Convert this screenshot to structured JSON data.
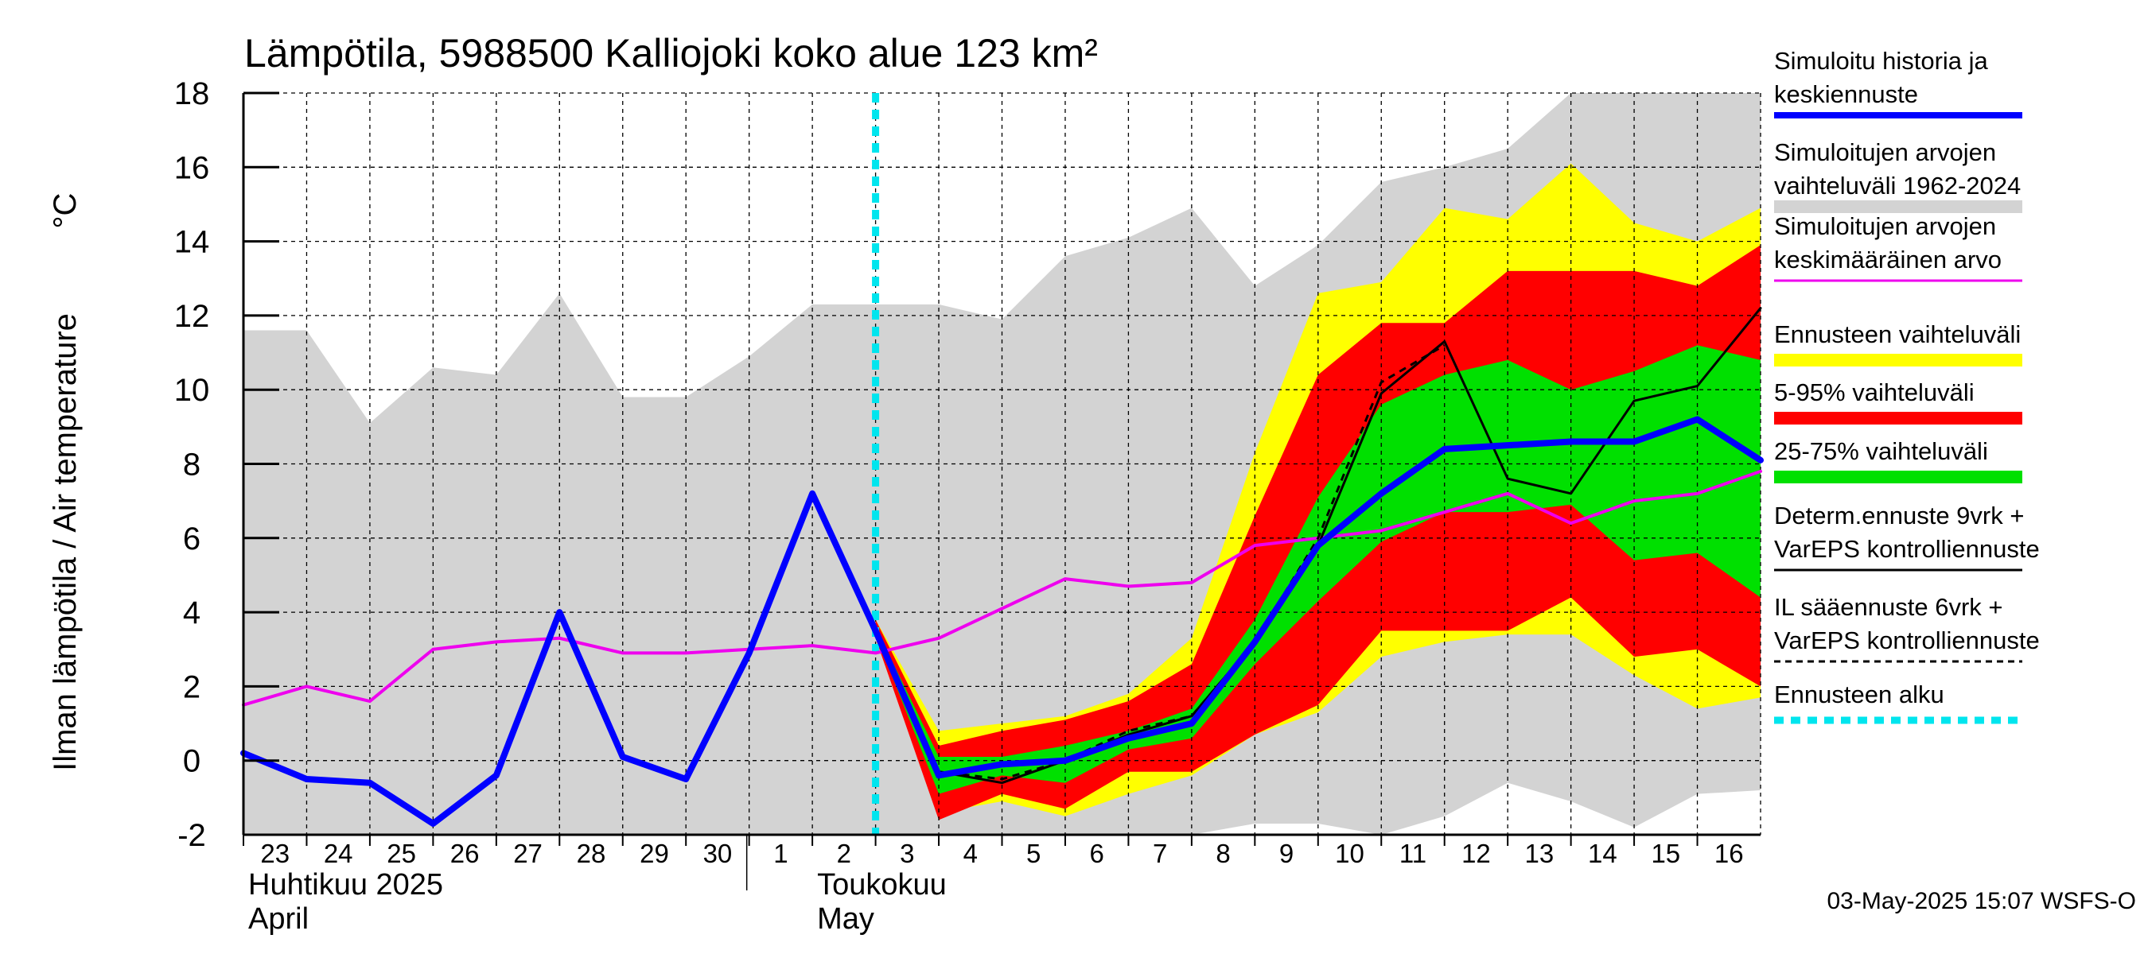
{
  "chart_data": {
    "type": "area",
    "title": "Lämpötila, 5988500 Kalliojoki koko alue 123 km²",
    "ylabel_fi": "Ilman lämpötila / Air temperature",
    "ylabel_unit": "°C",
    "ylim": [
      -2,
      18
    ],
    "yticks": [
      -2,
      0,
      2,
      4,
      6,
      8,
      10,
      12,
      14,
      16,
      18
    ],
    "x_range": [
      0,
      24
    ],
    "grid": true,
    "days": [
      {
        "x": 0,
        "label": "23"
      },
      {
        "x": 1,
        "label": "24"
      },
      {
        "x": 2,
        "label": "25"
      },
      {
        "x": 3,
        "label": "26"
      },
      {
        "x": 4,
        "label": "27"
      },
      {
        "x": 5,
        "label": "28"
      },
      {
        "x": 6,
        "label": "29"
      },
      {
        "x": 7,
        "label": "30"
      },
      {
        "x": 8,
        "label": "1"
      },
      {
        "x": 9,
        "label": "2"
      },
      {
        "x": 10,
        "label": "3"
      },
      {
        "x": 11,
        "label": "4"
      },
      {
        "x": 12,
        "label": "5"
      },
      {
        "x": 13,
        "label": "6"
      },
      {
        "x": 14,
        "label": "7"
      },
      {
        "x": 15,
        "label": "8"
      },
      {
        "x": 16,
        "label": "9"
      },
      {
        "x": 17,
        "label": "10"
      },
      {
        "x": 18,
        "label": "11"
      },
      {
        "x": 19,
        "label": "12"
      },
      {
        "x": 20,
        "label": "13"
      },
      {
        "x": 21,
        "label": "14"
      },
      {
        "x": 22,
        "label": "15"
      },
      {
        "x": 23,
        "label": "16"
      }
    ],
    "month_divider_x": 8,
    "months": [
      {
        "x": 0,
        "label_fi": "Huhtikuu  2025",
        "label_en": "April"
      },
      {
        "x": 9,
        "label_fi": "Toukokuu",
        "label_en": "May"
      }
    ],
    "forecast_start_x": 10,
    "series": [
      {
        "name": "Simuloitujen arvojen vaihteluväli 1962-2024",
        "kind": "band",
        "color": "#d3d3d3",
        "x": [
          0,
          1,
          2,
          3,
          4,
          5,
          6,
          7,
          8,
          9,
          10,
          11,
          12,
          13,
          14,
          15,
          16,
          17,
          18,
          19,
          20,
          21,
          22,
          23,
          24
        ],
        "upper": [
          11.6,
          11.6,
          9.1,
          10.6,
          10.4,
          12.6,
          9.8,
          9.8,
          10.9,
          12.3,
          12.3,
          12.3,
          11.9,
          13.6,
          14.1,
          14.9,
          12.8,
          13.9,
          15.6,
          16.0,
          16.5,
          18.0,
          18.0,
          18.0,
          18.0
        ],
        "lower": [
          -2,
          -2,
          -2,
          -2,
          -2,
          -2,
          -2,
          -2,
          -2,
          -2,
          -2,
          -2,
          -2,
          -2,
          -2,
          -2,
          -1.7,
          -1.7,
          -2.0,
          -1.5,
          -0.6,
          -1.1,
          -1.8,
          -0.9,
          -0.8
        ]
      },
      {
        "name": "Ennusteen vaihteluväli",
        "kind": "band",
        "color": "#ffff00",
        "x": [
          10,
          11,
          12,
          13,
          14,
          15,
          16,
          17,
          18,
          19,
          20,
          21,
          22,
          23,
          24
        ],
        "upper": [
          3.8,
          0.8,
          1.0,
          1.2,
          1.8,
          3.3,
          8.3,
          12.6,
          12.9,
          14.9,
          14.6,
          16.1,
          14.5,
          14.0,
          14.9
        ],
        "lower": [
          3.4,
          -1.4,
          -1.1,
          -1.5,
          -0.9,
          -0.4,
          0.7,
          1.3,
          2.8,
          3.2,
          3.4,
          3.4,
          2.3,
          1.4,
          1.7
        ]
      },
      {
        "name": "5-95% vaihteluväli",
        "kind": "band",
        "color": "#ff0000",
        "x": [
          10,
          11,
          12,
          13,
          14,
          15,
          16,
          17,
          18,
          19,
          20,
          21,
          22,
          23,
          24
        ],
        "upper": [
          3.8,
          0.4,
          0.8,
          1.1,
          1.6,
          2.6,
          6.6,
          10.4,
          11.8,
          11.8,
          13.2,
          13.2,
          13.2,
          12.8,
          13.9
        ],
        "lower": [
          3.3,
          -1.6,
          -0.9,
          -1.3,
          -0.3,
          -0.3,
          0.7,
          1.5,
          3.5,
          3.5,
          3.5,
          4.4,
          2.8,
          3.0,
          2.0
        ]
      },
      {
        "name": "25-75% vaihteluväli",
        "kind": "band",
        "color": "#00e000",
        "x": [
          10,
          11,
          12,
          13,
          14,
          15,
          16,
          17,
          18,
          19,
          20,
          21,
          22,
          23,
          24
        ],
        "upper": [
          3.6,
          0.1,
          0.1,
          0.4,
          0.8,
          1.4,
          3.8,
          7.1,
          9.6,
          10.4,
          10.8,
          10.0,
          10.5,
          11.2,
          10.8
        ],
        "lower": [
          3.4,
          -0.9,
          -0.4,
          -0.6,
          0.3,
          0.6,
          2.6,
          4.3,
          5.9,
          6.7,
          6.7,
          6.9,
          5.4,
          5.6,
          4.4
        ]
      },
      {
        "name": "Simuloitujen arvojen keskimääräinen arvo",
        "kind": "line",
        "color": "#ee00ee",
        "width": 4,
        "dash": "",
        "x": [
          0,
          1,
          2,
          3,
          4,
          5,
          6,
          7,
          8,
          9,
          10,
          11,
          12,
          13,
          14,
          15,
          16,
          17,
          18,
          19,
          20,
          21,
          22,
          23,
          24
        ],
        "y": [
          1.5,
          2.0,
          1.6,
          3.0,
          3.2,
          3.3,
          2.9,
          2.9,
          3.0,
          3.1,
          2.9,
          3.3,
          4.1,
          4.9,
          4.7,
          4.8,
          5.8,
          6.0,
          6.2,
          6.7,
          7.2,
          6.4,
          7.0,
          7.2,
          7.8
        ]
      },
      {
        "name": "IL sääennuste 6vrk + VarEPS kontrolliennuste",
        "kind": "line",
        "color": "#000000",
        "width": 3,
        "dash": "9 7",
        "x": [
          10,
          11,
          12,
          13,
          14,
          15,
          16,
          17,
          18,
          19
        ],
        "y": [
          3.5,
          -0.3,
          -0.5,
          0.0,
          0.8,
          1.2,
          3.2,
          6.0,
          10.2,
          11.2
        ]
      },
      {
        "name": "Determ.ennuste 9vrk + VarEPS kontrolliennuste",
        "kind": "line",
        "color": "#000000",
        "width": 3,
        "dash": "",
        "x": [
          10,
          11,
          12,
          13,
          14,
          15,
          16,
          17,
          18,
          19,
          20,
          21,
          22,
          23,
          24
        ],
        "y": [
          3.5,
          -0.3,
          -0.6,
          0.0,
          0.7,
          1.2,
          3.2,
          5.8,
          9.9,
          11.3,
          7.6,
          7.2,
          9.7,
          10.1,
          12.2
        ]
      },
      {
        "name": "Simuloitu historia ja keskiennuste",
        "kind": "line",
        "color": "#0000ff",
        "width": 8,
        "dash": "",
        "x": [
          0,
          1,
          2,
          3,
          4,
          5,
          6,
          7,
          8,
          9,
          10,
          11,
          12,
          13,
          14,
          15,
          16,
          17,
          18,
          19,
          20,
          21,
          22,
          23,
          24
        ],
        "y": [
          0.2,
          -0.5,
          -0.6,
          -1.7,
          -0.4,
          4.0,
          0.1,
          -0.5,
          2.9,
          7.2,
          3.5,
          -0.4,
          -0.1,
          0.0,
          0.6,
          1.0,
          3.2,
          5.8,
          7.2,
          8.4,
          8.5,
          8.6,
          8.6,
          9.2,
          8.1
        ]
      }
    ],
    "legend": [
      {
        "label": "Simuloitu historia ja keskiennuste",
        "line1": "Simuloitu historia ja",
        "line2": "keskiennuste",
        "color": "#0000ff",
        "style": "thick"
      },
      {
        "label": "Simuloitujen arvojen vaihteluväli 1962-2024",
        "line1": "Simuloitujen arvojen",
        "line2": "vaihteluväli 1962-2024",
        "color": "#d3d3d3",
        "style": "band"
      },
      {
        "label": "Simuloitujen arvojen keskimääräinen arvo",
        "line1": "Simuloitujen arvojen",
        "line2": "keskimääräinen arvo",
        "color": "#ee00ee",
        "style": "thin"
      },
      {
        "label": "Ennusteen vaihteluväli",
        "line1": "Ennusteen vaihteluväli",
        "line2": "",
        "color": "#ffff00",
        "style": "band"
      },
      {
        "label": "5-95% vaihteluväli",
        "line1": "5-95% vaihteluväli",
        "line2": "",
        "color": "#ff0000",
        "style": "band"
      },
      {
        "label": "25-75% vaihteluväli",
        "line1": "25-75% vaihteluväli",
        "line2": "",
        "color": "#00e000",
        "style": "band"
      },
      {
        "label": "Determ.ennuste 9vrk + VarEPS kontrolliennuste",
        "line1": "Determ.ennuste 9vrk +",
        "line2": "VarEPS kontrolliennuste",
        "color": "#000000",
        "style": "thin"
      },
      {
        "label": "IL sääennuste 6vrk + VarEPS kontrolliennuste",
        "line1": "IL sääennuste 6vrk  +",
        "line2": "  VarEPS kontrolliennuste",
        "color": "#000000",
        "style": "dashed"
      },
      {
        "label": "Ennusteen alku",
        "line1": "Ennusteen alku",
        "line2": "",
        "color": "#00e5ee",
        "style": "cyan-dashed"
      }
    ],
    "timestamp": "03-May-2025 15:07 WSFS-O"
  }
}
